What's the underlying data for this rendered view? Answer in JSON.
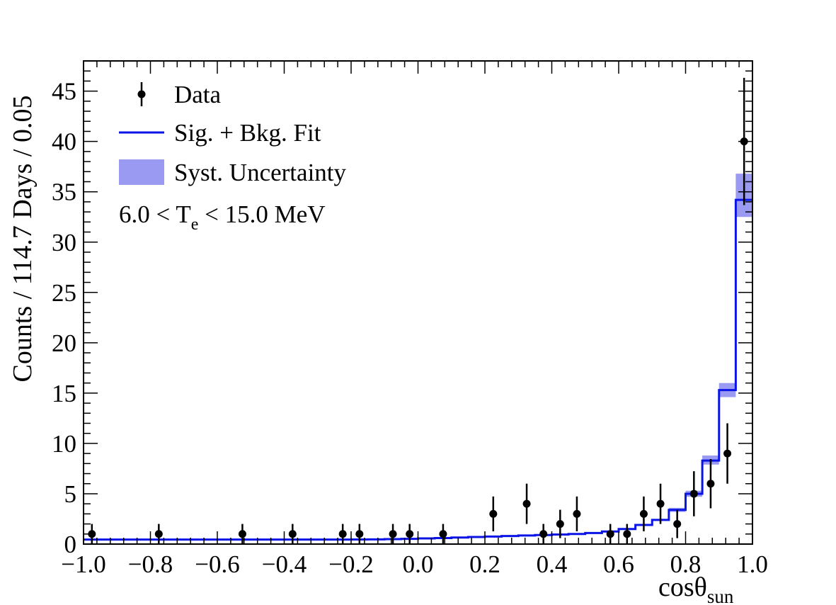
{
  "chart_data": {
    "type": "histogram",
    "xlabel_main": "cosθ",
    "xlabel_sub": "sun",
    "ylabel": "Counts / 114.7 Days / 0.05",
    "xlim": [
      -1.0,
      1.0
    ],
    "ylim": [
      0,
      48
    ],
    "grid": false,
    "legend_position": "top-left",
    "annotation": {
      "prefix": "6.0 < T",
      "sub": "e",
      "suffix": " < 15.0 MeV"
    },
    "x_tick_labels": [
      "−1.0",
      "−0.8",
      "−0.6",
      "−0.4",
      "−0.2",
      "0.0",
      "0.2",
      "0.4",
      "0.6",
      "0.8",
      "1.0"
    ],
    "y_tick_labels": [
      "0",
      "5",
      "10",
      "15",
      "20",
      "25",
      "30",
      "35",
      "40",
      "45"
    ],
    "bin_width": 0.05,
    "legend": [
      {
        "key": "data",
        "label": "Data"
      },
      {
        "key": "fit",
        "label": "Sig. + Bkg. Fit"
      },
      {
        "key": "syst",
        "label": "Syst. Uncertainty"
      }
    ],
    "colors": {
      "fit": "#0a14e6",
      "band": "#9a9af2",
      "data": "#000000"
    },
    "fit": {
      "name": "Sig. + Bkg. Fit",
      "edges": [
        -1.0,
        -0.95,
        -0.9,
        -0.85,
        -0.8,
        -0.75,
        -0.7,
        -0.65,
        -0.6,
        -0.55,
        -0.5,
        -0.45,
        -0.4,
        -0.35,
        -0.3,
        -0.25,
        -0.2,
        -0.15,
        -0.1,
        -0.05,
        0.0,
        0.05,
        0.1,
        0.15,
        0.2,
        0.25,
        0.3,
        0.35,
        0.4,
        0.45,
        0.5,
        0.55,
        0.6,
        0.65,
        0.7,
        0.75,
        0.8,
        0.85,
        0.9,
        0.95,
        1.0
      ],
      "values": [
        0.45,
        0.45,
        0.45,
        0.45,
        0.45,
        0.45,
        0.45,
        0.45,
        0.45,
        0.45,
        0.45,
        0.45,
        0.45,
        0.45,
        0.45,
        0.45,
        0.46,
        0.47,
        0.49,
        0.52,
        0.56,
        0.6,
        0.65,
        0.7,
        0.75,
        0.8,
        0.85,
        0.9,
        0.95,
        1.0,
        1.1,
        1.25,
        1.5,
        1.9,
        2.4,
        3.4,
        5.0,
        8.3,
        15.3,
        34.2
      ],
      "band_low": [
        0.43,
        0.43,
        0.43,
        0.43,
        0.43,
        0.43,
        0.43,
        0.43,
        0.43,
        0.43,
        0.43,
        0.43,
        0.43,
        0.43,
        0.43,
        0.43,
        0.44,
        0.45,
        0.47,
        0.5,
        0.54,
        0.58,
        0.63,
        0.68,
        0.73,
        0.78,
        0.83,
        0.88,
        0.92,
        0.97,
        1.06,
        1.2,
        1.44,
        1.82,
        2.3,
        3.2,
        4.7,
        7.9,
        14.6,
        32.5
      ],
      "band_high": [
        0.47,
        0.47,
        0.47,
        0.47,
        0.47,
        0.47,
        0.47,
        0.47,
        0.47,
        0.47,
        0.47,
        0.47,
        0.47,
        0.47,
        0.47,
        0.47,
        0.48,
        0.49,
        0.51,
        0.54,
        0.58,
        0.62,
        0.67,
        0.72,
        0.77,
        0.82,
        0.87,
        0.92,
        0.98,
        1.03,
        1.14,
        1.3,
        1.56,
        1.98,
        2.5,
        3.6,
        5.3,
        8.8,
        16.0,
        36.8
      ]
    },
    "data": {
      "name": "Data",
      "x": [
        -0.975,
        -0.775,
        -0.525,
        -0.375,
        -0.225,
        -0.175,
        -0.075,
        -0.025,
        0.075,
        0.225,
        0.325,
        0.375,
        0.425,
        0.475,
        0.575,
        0.625,
        0.675,
        0.725,
        0.775,
        0.825,
        0.875,
        0.925,
        0.975
      ],
      "y": [
        1,
        1,
        1,
        1,
        1,
        1,
        1,
        1,
        1,
        3,
        4,
        1,
        2,
        3,
        1,
        1,
        3,
        4,
        2,
        5,
        6,
        9,
        40
      ],
      "err": [
        1.0,
        1.0,
        1.0,
        1.0,
        1.0,
        1.0,
        1.0,
        1.0,
        1.0,
        1.73,
        2.0,
        1.0,
        1.41,
        1.73,
        1.0,
        1.0,
        1.73,
        2.0,
        1.41,
        2.24,
        2.45,
        3.0,
        6.32
      ]
    }
  }
}
